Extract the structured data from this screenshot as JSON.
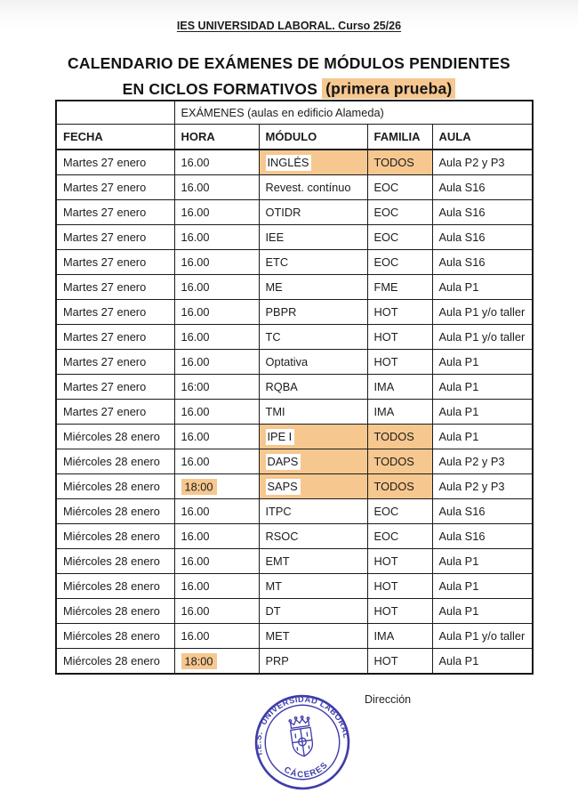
{
  "doc": {
    "header": "IES UNIVERSIDAD LABORAL. Curso 25/26",
    "title_line1": "CALENDARIO DE EXÁMENES DE MÓDULOS PENDIENTES",
    "title_line2_prefix": "EN CICLOS FORMATIVOS ",
    "title_line2_highlight": "(primera prueba)"
  },
  "table": {
    "merged_header": "EXÁMENES (aulas en edificio Alameda)",
    "columns": [
      "FECHA",
      "HORA",
      "MÓDULO",
      "FAMILIA",
      "AULA"
    ],
    "rows": [
      {
        "fecha": "Martes 27 enero",
        "hora": "16.00",
        "modulo": "INGLÉS",
        "familia": "TODOS",
        "aula": "Aula P2 y P3",
        "modulo_hl": true,
        "familia_hl": true,
        "hora_hl": false
      },
      {
        "fecha": "Martes 27 enero",
        "hora": "16.00",
        "modulo": "Revest. contínuo",
        "familia": "EOC",
        "aula": "Aula S16",
        "modulo_hl": false,
        "familia_hl": false,
        "hora_hl": false
      },
      {
        "fecha": "Martes 27 enero",
        "hora": "16.00",
        "modulo": "OTIDR",
        "familia": "EOC",
        "aula": "Aula S16",
        "modulo_hl": false,
        "familia_hl": false,
        "hora_hl": false
      },
      {
        "fecha": "Martes 27 enero",
        "hora": "16.00",
        "modulo": "IEE",
        "familia": "EOC",
        "aula": "Aula S16",
        "modulo_hl": false,
        "familia_hl": false,
        "hora_hl": false
      },
      {
        "fecha": "Martes 27 enero",
        "hora": "16.00",
        "modulo": "ETC",
        "familia": "EOC",
        "aula": "Aula S16",
        "modulo_hl": false,
        "familia_hl": false,
        "hora_hl": false
      },
      {
        "fecha": "Martes 27 enero",
        "hora": "16.00",
        "modulo": "ME",
        "familia": "FME",
        "aula": "Aula P1",
        "modulo_hl": false,
        "familia_hl": false,
        "hora_hl": false
      },
      {
        "fecha": "Martes 27 enero",
        "hora": "16.00",
        "modulo": "PBPR",
        "familia": "HOT",
        "aula": "Aula P1 y/o taller",
        "modulo_hl": false,
        "familia_hl": false,
        "hora_hl": false
      },
      {
        "fecha": "Martes 27 enero",
        "hora": "16.00",
        "modulo": "TC",
        "familia": "HOT",
        "aula": "Aula P1 y/o taller",
        "modulo_hl": false,
        "familia_hl": false,
        "hora_hl": false
      },
      {
        "fecha": "Martes 27 enero",
        "hora": "16.00",
        "modulo": "Optativa",
        "familia": "HOT",
        "aula": "Aula P1",
        "modulo_hl": false,
        "familia_hl": false,
        "hora_hl": false
      },
      {
        "fecha": "Martes 27 enero",
        "hora": "16:00",
        "modulo": "RQBA",
        "familia": "IMA",
        "aula": "Aula P1",
        "modulo_hl": false,
        "familia_hl": false,
        "hora_hl": false
      },
      {
        "fecha": "Martes 27 enero",
        "hora": "16.00",
        "modulo": "TMI",
        "familia": "IMA",
        "aula": "Aula P1",
        "modulo_hl": false,
        "familia_hl": false,
        "hora_hl": false
      },
      {
        "fecha": "Miércoles 28 enero",
        "hora": "16.00",
        "modulo": "IPE I",
        "familia": "TODOS",
        "aula": "Aula P1",
        "modulo_hl": true,
        "familia_hl": true,
        "hora_hl": false
      },
      {
        "fecha": "Miércoles 28 enero",
        "hora": "16.00",
        "modulo": "DAPS",
        "familia": "TODOS",
        "aula": "Aula P2 y P3",
        "modulo_hl": true,
        "familia_hl": true,
        "hora_hl": false
      },
      {
        "fecha": "Miércoles 28 enero",
        "hora": "18:00",
        "modulo": "SAPS",
        "familia": "TODOS",
        "aula": "Aula P2 y P3",
        "modulo_hl": true,
        "familia_hl": true,
        "hora_hl": true
      },
      {
        "fecha": "Miércoles 28 enero",
        "hora": "16.00",
        "modulo": "ITPC",
        "familia": "EOC",
        "aula": "Aula S16",
        "modulo_hl": false,
        "familia_hl": false,
        "hora_hl": false
      },
      {
        "fecha": "Miércoles 28 enero",
        "hora": "16.00",
        "modulo": "RSOC",
        "familia": "EOC",
        "aula": "Aula S16",
        "modulo_hl": false,
        "familia_hl": false,
        "hora_hl": false
      },
      {
        "fecha": "Miércoles 28 enero",
        "hora": "16.00",
        "modulo": "EMT",
        "familia": "HOT",
        "aula": "Aula P1",
        "modulo_hl": false,
        "familia_hl": false,
        "hora_hl": false
      },
      {
        "fecha": "Miércoles 28 enero",
        "hora": "16.00",
        "modulo": "MT",
        "familia": "HOT",
        "aula": "Aula P1",
        "modulo_hl": false,
        "familia_hl": false,
        "hora_hl": false
      },
      {
        "fecha": "Miércoles 28 enero",
        "hora": "16.00",
        "modulo": "DT",
        "familia": "HOT",
        "aula": "Aula P1",
        "modulo_hl": false,
        "familia_hl": false,
        "hora_hl": false
      },
      {
        "fecha": "Miércoles 28 enero",
        "hora": "16.00",
        "modulo": "MET",
        "familia": "IMA",
        "aula": "Aula P1 y/o taller",
        "modulo_hl": false,
        "familia_hl": false,
        "hora_hl": false
      },
      {
        "fecha": "Miércoles 28 enero",
        "hora": "18:00",
        "modulo": "PRP",
        "familia": "HOT",
        "aula": "Aula P1",
        "modulo_hl": false,
        "familia_hl": false,
        "hora_hl": true
      }
    ]
  },
  "footer": {
    "direccion_label": "Dirección",
    "stamp_top_text": "I.E.S. \"UNIVERSIDAD LABORAL\"",
    "stamp_bottom_text": "CÁCERES"
  },
  "colors": {
    "highlight_orange": "#f6c78f",
    "stamp_blue": "#3f3daa"
  }
}
